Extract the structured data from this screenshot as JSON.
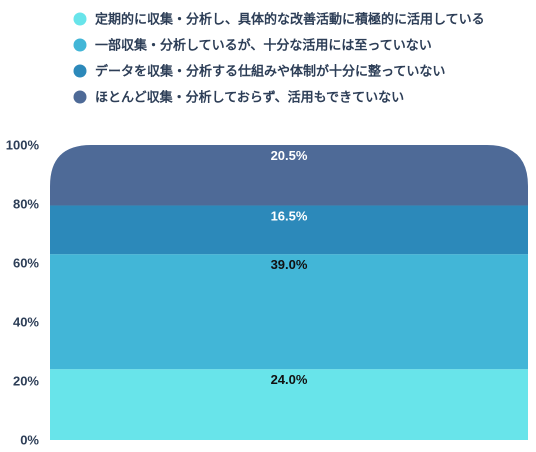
{
  "chart_data": {
    "type": "bar",
    "stacked": true,
    "categories": [
      ""
    ],
    "series": [
      {
        "name": "定期的に収集・分析し、具体的な改善活動に積極的に活用している",
        "values": [
          24.0
        ],
        "label": "24.0%",
        "color": "#68e4ea",
        "label_color": "#111111"
      },
      {
        "name": "一部収集・分析しているが、十分な活用には至っていない",
        "values": [
          39.0
        ],
        "label": "39.0%",
        "color": "#42b6d7",
        "label_color": "#111111"
      },
      {
        "name": "データを収集・分析する仕組みや体制が十分に整っていない",
        "values": [
          16.5
        ],
        "label": "16.5%",
        "color": "#2c89ba",
        "label_color": "#ffffff"
      },
      {
        "name": "ほとんど収集・分析しておらず、活用もできていない",
        "values": [
          20.5
        ],
        "label": "20.5%",
        "color": "#4e6a97",
        "label_color": "#ffffff"
      }
    ],
    "yticks": [
      "0%",
      "20%",
      "40%",
      "60%",
      "80%",
      "100%"
    ],
    "ylim": [
      0,
      100
    ],
    "grid": false,
    "legend_position": "top-left"
  }
}
